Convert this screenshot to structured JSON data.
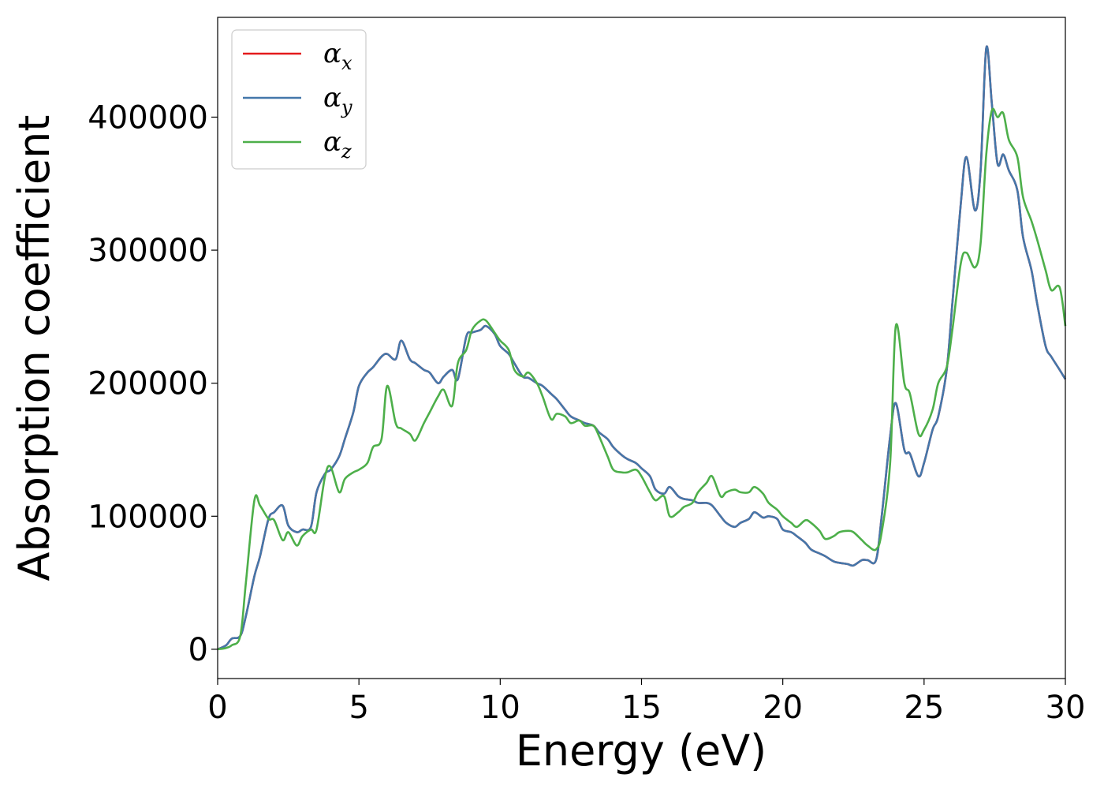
{
  "chart_data": {
    "type": "line",
    "xlabel": "Energy (eV)",
    "ylabel": "Absorption coefficient",
    "xlim": [
      0,
      30
    ],
    "ylim": [
      -22000,
      475000
    ],
    "xticks": [
      0,
      5,
      10,
      15,
      20,
      25,
      30
    ],
    "xtick_labels": [
      "0",
      "5",
      "10",
      "15",
      "20",
      "25",
      "30"
    ],
    "yticks": [
      0,
      100000,
      200000,
      300000,
      400000
    ],
    "ytick_labels": [
      "0",
      "100000",
      "200000",
      "300000",
      "400000"
    ],
    "grid": false,
    "legend_position": "top-left",
    "series": [
      {
        "name": "αx",
        "symbol": "α",
        "subscript": "x",
        "color": "#e41a1c",
        "x": [
          0,
          0.3,
          0.5,
          0.8,
          1.0,
          1.3,
          1.5,
          1.8,
          2.0,
          2.3,
          2.5,
          2.8,
          3.0,
          3.3,
          3.5,
          3.8,
          4.0,
          4.3,
          4.5,
          4.8,
          5.0,
          5.3,
          5.5,
          5.8,
          6.0,
          6.3,
          6.5,
          6.8,
          7.0,
          7.3,
          7.5,
          7.8,
          8.0,
          8.3,
          8.5,
          8.8,
          9.0,
          9.3,
          9.5,
          9.8,
          10.0,
          10.3,
          10.5,
          10.8,
          11.0,
          11.3,
          11.5,
          11.8,
          12.0,
          12.3,
          12.5,
          12.8,
          13.0,
          13.3,
          13.5,
          13.8,
          14.0,
          14.3,
          14.5,
          14.8,
          15.0,
          15.3,
          15.5,
          15.8,
          16.0,
          16.3,
          16.5,
          16.8,
          17.0,
          17.3,
          17.5,
          17.8,
          18.0,
          18.3,
          18.5,
          18.8,
          19.0,
          19.3,
          19.5,
          19.8,
          20.0,
          20.3,
          20.5,
          20.8,
          21.0,
          21.3,
          21.5,
          21.8,
          22.0,
          22.3,
          22.5,
          22.8,
          23.0,
          23.3,
          23.5,
          23.8,
          24.0,
          24.3,
          24.5,
          24.8,
          25.0,
          25.3,
          25.5,
          25.8,
          26.0,
          26.3,
          26.5,
          26.8,
          27.0,
          27.2,
          27.4,
          27.6,
          27.8,
          28.0,
          28.3,
          28.5,
          28.8,
          29.0,
          29.3,
          29.5,
          29.8,
          30.0
        ],
        "y": [
          0,
          3000,
          8000,
          10000,
          25000,
          55000,
          70000,
          98000,
          103000,
          108000,
          93000,
          88000,
          90000,
          92000,
          118000,
          132000,
          135000,
          145000,
          158000,
          178000,
          198000,
          208000,
          212000,
          220000,
          222000,
          218000,
          232000,
          218000,
          215000,
          210000,
          208000,
          200000,
          205000,
          210000,
          203000,
          235000,
          238000,
          240000,
          243000,
          237000,
          228000,
          222000,
          215000,
          205000,
          204000,
          200000,
          198000,
          192000,
          188000,
          180000,
          175000,
          172000,
          170000,
          168000,
          163000,
          158000,
          152000,
          146000,
          143000,
          140000,
          136000,
          130000,
          120000,
          117000,
          122000,
          115000,
          113000,
          112000,
          110000,
          110000,
          108000,
          100000,
          95000,
          92000,
          95000,
          98000,
          103000,
          99000,
          100000,
          98000,
          90000,
          88000,
          85000,
          80000,
          75000,
          72000,
          70000,
          66000,
          65000,
          64000,
          63000,
          67000,
          67000,
          67000,
          100000,
          160000,
          185000,
          150000,
          147000,
          130000,
          140000,
          165000,
          175000,
          210000,
          260000,
          335000,
          370000,
          330000,
          360000,
          452000,
          410000,
          365000,
          372000,
          360000,
          345000,
          310000,
          285000,
          260000,
          228000,
          220000,
          210000,
          203000
        ]
      },
      {
        "name": "αy",
        "symbol": "α",
        "subscript": "y",
        "color": "#4477aa",
        "x": [
          0,
          0.3,
          0.5,
          0.8,
          1.0,
          1.3,
          1.5,
          1.8,
          2.0,
          2.3,
          2.5,
          2.8,
          3.0,
          3.3,
          3.5,
          3.8,
          4.0,
          4.3,
          4.5,
          4.8,
          5.0,
          5.3,
          5.5,
          5.8,
          6.0,
          6.3,
          6.5,
          6.8,
          7.0,
          7.3,
          7.5,
          7.8,
          8.0,
          8.3,
          8.5,
          8.8,
          9.0,
          9.3,
          9.5,
          9.8,
          10.0,
          10.3,
          10.5,
          10.8,
          11.0,
          11.3,
          11.5,
          11.8,
          12.0,
          12.3,
          12.5,
          12.8,
          13.0,
          13.3,
          13.5,
          13.8,
          14.0,
          14.3,
          14.5,
          14.8,
          15.0,
          15.3,
          15.5,
          15.8,
          16.0,
          16.3,
          16.5,
          16.8,
          17.0,
          17.3,
          17.5,
          17.8,
          18.0,
          18.3,
          18.5,
          18.8,
          19.0,
          19.3,
          19.5,
          19.8,
          20.0,
          20.3,
          20.5,
          20.8,
          21.0,
          21.3,
          21.5,
          21.8,
          22.0,
          22.3,
          22.5,
          22.8,
          23.0,
          23.3,
          23.5,
          23.8,
          24.0,
          24.3,
          24.5,
          24.8,
          25.0,
          25.3,
          25.5,
          25.8,
          26.0,
          26.3,
          26.5,
          26.8,
          27.0,
          27.2,
          27.4,
          27.6,
          27.8,
          28.0,
          28.3,
          28.5,
          28.8,
          29.0,
          29.3,
          29.5,
          29.8,
          30.0
        ],
        "y": [
          0,
          3000,
          8000,
          10000,
          25000,
          55000,
          70000,
          98000,
          103000,
          108000,
          93000,
          88000,
          90000,
          92000,
          118000,
          132000,
          135000,
          145000,
          158000,
          178000,
          198000,
          208000,
          212000,
          220000,
          222000,
          218000,
          232000,
          218000,
          215000,
          210000,
          208000,
          200000,
          205000,
          210000,
          203000,
          235000,
          238000,
          240000,
          243000,
          237000,
          228000,
          222000,
          215000,
          205000,
          204000,
          200000,
          198000,
          192000,
          188000,
          180000,
          175000,
          172000,
          170000,
          168000,
          163000,
          158000,
          152000,
          146000,
          143000,
          140000,
          136000,
          130000,
          120000,
          117000,
          122000,
          115000,
          113000,
          112000,
          110000,
          110000,
          108000,
          100000,
          95000,
          92000,
          95000,
          98000,
          103000,
          99000,
          100000,
          98000,
          90000,
          88000,
          85000,
          80000,
          75000,
          72000,
          70000,
          66000,
          65000,
          64000,
          63000,
          67000,
          67000,
          67000,
          100000,
          160000,
          185000,
          150000,
          147000,
          130000,
          140000,
          165000,
          175000,
          210000,
          260000,
          335000,
          370000,
          330000,
          360000,
          452000,
          410000,
          365000,
          372000,
          360000,
          345000,
          310000,
          285000,
          260000,
          228000,
          220000,
          210000,
          203000
        ]
      },
      {
        "name": "αz",
        "symbol": "α",
        "subscript": "z",
        "color": "#4daf4a",
        "x": [
          0,
          0.3,
          0.5,
          0.8,
          1.0,
          1.3,
          1.5,
          1.8,
          2.0,
          2.3,
          2.5,
          2.8,
          3.0,
          3.3,
          3.5,
          3.8,
          4.0,
          4.3,
          4.5,
          4.8,
          5.0,
          5.3,
          5.5,
          5.8,
          6.0,
          6.3,
          6.5,
          6.8,
          7.0,
          7.3,
          7.5,
          7.8,
          8.0,
          8.3,
          8.5,
          8.8,
          9.0,
          9.3,
          9.5,
          9.8,
          10.0,
          10.3,
          10.5,
          10.8,
          11.0,
          11.3,
          11.5,
          11.8,
          12.0,
          12.3,
          12.5,
          12.8,
          13.0,
          13.3,
          13.5,
          13.8,
          14.0,
          14.3,
          14.5,
          14.8,
          15.0,
          15.3,
          15.5,
          15.8,
          16.0,
          16.3,
          16.5,
          16.8,
          17.0,
          17.3,
          17.5,
          17.8,
          18.0,
          18.3,
          18.5,
          18.8,
          19.0,
          19.3,
          19.5,
          19.8,
          20.0,
          20.3,
          20.5,
          20.8,
          21.0,
          21.3,
          21.5,
          21.8,
          22.0,
          22.3,
          22.5,
          22.8,
          23.0,
          23.3,
          23.5,
          23.8,
          24.0,
          24.3,
          24.5,
          24.8,
          25.0,
          25.3,
          25.5,
          25.8,
          26.0,
          26.3,
          26.5,
          26.8,
          27.0,
          27.2,
          27.4,
          27.6,
          27.8,
          28.0,
          28.3,
          28.5,
          28.8,
          29.0,
          29.3,
          29.5,
          29.8,
          30.0
        ],
        "y": [
          0,
          1000,
          3000,
          10000,
          50000,
          112000,
          108000,
          98000,
          97000,
          82000,
          88000,
          78000,
          85000,
          90000,
          90000,
          130000,
          137000,
          118000,
          128000,
          133000,
          135000,
          140000,
          152000,
          158000,
          198000,
          170000,
          166000,
          162000,
          157000,
          170000,
          178000,
          190000,
          195000,
          183000,
          215000,
          225000,
          240000,
          247000,
          247000,
          238000,
          232000,
          225000,
          210000,
          205000,
          208000,
          200000,
          190000,
          173000,
          177000,
          175000,
          170000,
          172000,
          168000,
          168000,
          160000,
          145000,
          135000,
          133000,
          133000,
          135000,
          130000,
          118000,
          112000,
          115000,
          100000,
          103000,
          107000,
          110000,
          118000,
          125000,
          130000,
          115000,
          118000,
          120000,
          118000,
          118000,
          122000,
          117000,
          110000,
          105000,
          100000,
          95000,
          92000,
          97000,
          95000,
          89000,
          83000,
          85000,
          88000,
          89000,
          88000,
          82000,
          78000,
          75000,
          88000,
          140000,
          243000,
          200000,
          192000,
          162000,
          165000,
          180000,
          200000,
          212000,
          240000,
          290000,
          298000,
          287000,
          305000,
          372000,
          405000,
          400000,
          403000,
          383000,
          370000,
          340000,
          322000,
          308000,
          285000,
          270000,
          272000,
          243000
        ]
      }
    ]
  }
}
